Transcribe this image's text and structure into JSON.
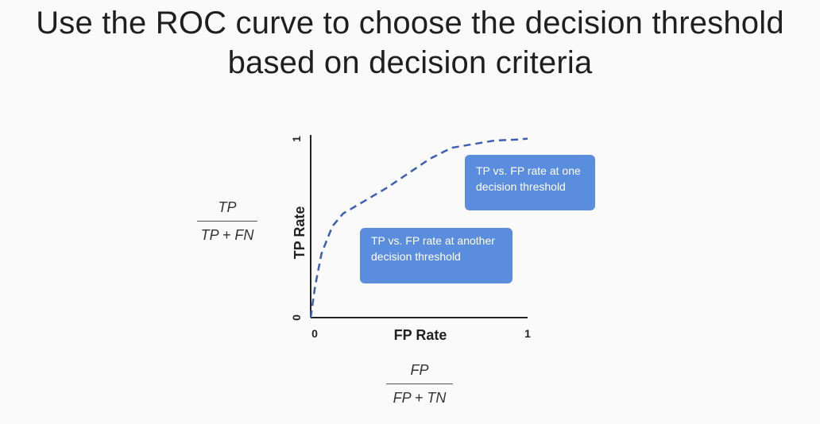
{
  "slide": {
    "title_line1": "Use the ROC curve to choose the decision threshold",
    "title_line2": "based on decision criteria"
  },
  "formulas": {
    "y_numerator": "TP",
    "y_denominator": "TP + FN",
    "x_numerator": "FP",
    "x_denominator": "FP + TN"
  },
  "callouts": {
    "one_threshold": "TP vs. FP rate at one decision threshold",
    "another_threshold": "TP vs. FP rate at another decision threshold"
  },
  "colors": {
    "curve": "#3a5fb5",
    "callout": "#5b8dde",
    "axis": "#222222"
  },
  "chart_data": {
    "type": "line",
    "title": "",
    "xlabel": "FP Rate",
    "ylabel": "TP Rate",
    "xlim": [
      0,
      1
    ],
    "ylim": [
      0,
      1
    ],
    "x_ticks": [
      "0",
      "1"
    ],
    "y_ticks": [
      "0",
      "1"
    ],
    "grid": false,
    "line_style": "dashed",
    "series": [
      {
        "x": [
          0,
          0.02,
          0.05,
          0.1,
          0.15,
          0.25,
          0.35,
          0.45,
          0.55,
          0.65,
          0.75,
          0.85,
          0.95,
          1.0
        ],
        "values": [
          0,
          0.17,
          0.35,
          0.5,
          0.57,
          0.64,
          0.71,
          0.79,
          0.87,
          0.93,
          0.95,
          0.97,
          0.975,
          0.98
        ]
      }
    ]
  }
}
